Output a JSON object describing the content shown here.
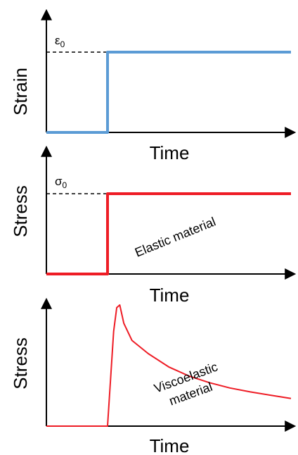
{
  "colors": {
    "strain": "#5b9bd5",
    "stress": "#ee1c25",
    "axis": "#000000"
  },
  "chart_data": [
    {
      "type": "line",
      "title": "",
      "xlabel": "Time",
      "ylabel": "Strain",
      "level_label": "ε",
      "level_subscript": "0",
      "step_time": 0.3,
      "level": 1.0,
      "xlim": [
        0,
        1.2
      ],
      "ylim": [
        0,
        1.0
      ],
      "series": [
        {
          "x": [
            0,
            0.3,
            0.3,
            1.2
          ],
          "y": [
            0,
            0,
            1.0,
            1.0
          ]
        }
      ],
      "annotation": "",
      "line_color": "strain"
    },
    {
      "type": "line",
      "title": "",
      "xlabel": "Time",
      "ylabel": "Stress",
      "level_label": "σ",
      "level_subscript": "0",
      "step_time": 0.3,
      "level": 1.0,
      "xlim": [
        0,
        1.2
      ],
      "ylim": [
        0,
        1.0
      ],
      "series": [
        {
          "x": [
            0,
            0.3,
            0.3,
            1.2
          ],
          "y": [
            0,
            0,
            1.0,
            1.0
          ]
        }
      ],
      "annotation": "Elastic material",
      "line_color": "stress"
    },
    {
      "type": "line",
      "title": "",
      "xlabel": "Time",
      "ylabel": "Stress",
      "level_label": "",
      "level_subscript": "",
      "step_time": 0.3,
      "level": 1.0,
      "xlim": [
        0,
        1.2
      ],
      "ylim": [
        0,
        1.0
      ],
      "series": [
        {
          "x": [
            0,
            0.3,
            0.3,
            0.33,
            0.345,
            0.36,
            0.38,
            0.42,
            0.5,
            0.6,
            0.7,
            0.8,
            0.9,
            1.0,
            1.1,
            1.2
          ],
          "y": [
            0,
            0,
            0,
            0.72,
            0.9,
            0.92,
            0.78,
            0.65,
            0.55,
            0.45,
            0.38,
            0.33,
            0.29,
            0.26,
            0.235,
            0.21
          ]
        }
      ],
      "annotation": "Viscoelastic material",
      "annotation_lines": [
        "Viscoelastic",
        "material"
      ],
      "line_color": "stress"
    }
  ]
}
